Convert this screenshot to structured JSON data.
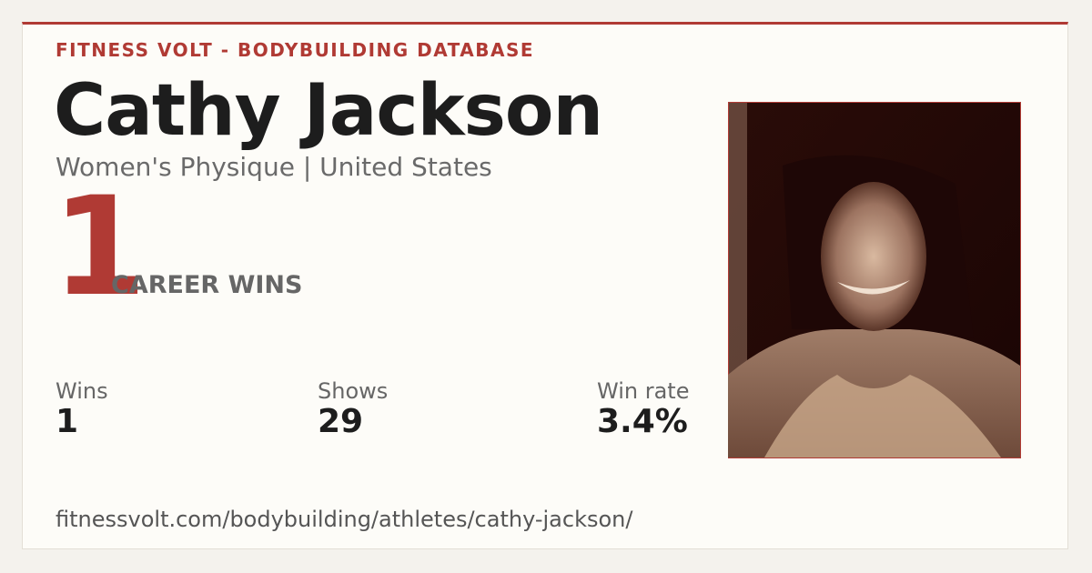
{
  "header": {
    "brand": "FITNESS VOLT - BODYBUILDING DATABASE"
  },
  "athlete": {
    "name": "Cathy Jackson",
    "subtitle": "Women's Physique | United States"
  },
  "highlight": {
    "number": "1",
    "label": "CAREER WINS"
  },
  "stats": [
    {
      "label": "Wins",
      "value": "1"
    },
    {
      "label": "Shows",
      "value": "29"
    },
    {
      "label": "Win rate",
      "value": "3.4%"
    }
  ],
  "footer": {
    "url": "fitnessvolt.com/bodybuilding/athletes/cathy-jackson/"
  }
}
